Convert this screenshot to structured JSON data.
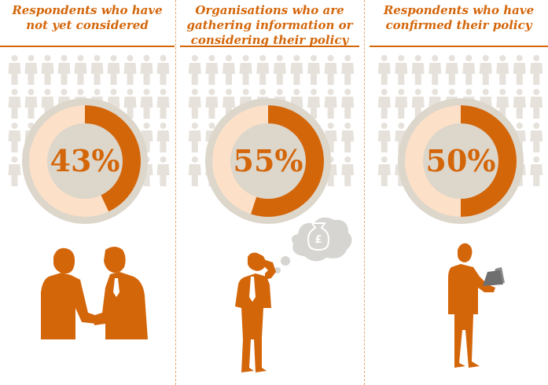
{
  "colors": {
    "accent": "#d4660a",
    "ring_light": "#fce0c8",
    "ring_grey": "#dcd6cb",
    "person_grey": "#e6e2db",
    "thought_bubble": "#d7d5d2"
  },
  "chart_data": [
    {
      "type": "pie",
      "title": "Respondents who have\nnot yet considered",
      "value": 43,
      "value_label": "43%",
      "illustration": "handshake-icon"
    },
    {
      "type": "pie",
      "title": "Organisations who are\ngathering information or\nconsidering their policy",
      "value": 55,
      "value_label": "55%",
      "illustration": "thinking-man-icon",
      "bubble_symbol": "£"
    },
    {
      "type": "pie",
      "title": "Respondents who have\nconfirmed their policy",
      "value": 50,
      "value_label": "50%",
      "illustration": "laptop-man-icon"
    }
  ]
}
